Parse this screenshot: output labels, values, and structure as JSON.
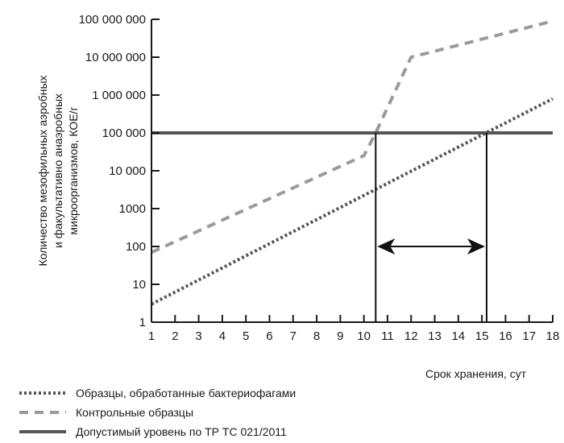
{
  "chart_data": {
    "type": "line",
    "xlabel": "Срок хранения, сут",
    "ylabel_lines": [
      "Количество мезофильных аэробных",
      "и факультативно анаэробных",
      "микроорганизмов, КОЕ/г"
    ],
    "x_ticks": [
      "1",
      "2",
      "3",
      "4",
      "5",
      "6",
      "7",
      "8",
      "9",
      "10",
      "11",
      "12",
      "13",
      "14",
      "15",
      "16",
      "17",
      "18"
    ],
    "y_ticks": [
      {
        "value": 1,
        "label": "1"
      },
      {
        "value": 10,
        "label": "10"
      },
      {
        "value": 100,
        "label": "100"
      },
      {
        "value": 1000,
        "label": "1000"
      },
      {
        "value": 10000,
        "label": "10 000"
      },
      {
        "value": 100000,
        "label": "100 000"
      },
      {
        "value": 1000000,
        "label": "1 000 000"
      },
      {
        "value": 10000000,
        "label": "10 000 000"
      },
      {
        "value": 100000000,
        "label": "100 000 000"
      }
    ],
    "xlim": [
      1,
      18
    ],
    "y_scale": "log",
    "ylim": [
      1,
      100000000
    ],
    "series": [
      {
        "name": "Образцы, обработанные бактериофагами",
        "style": "dotted",
        "color": "#555555",
        "x": [
          1,
          18
        ],
        "y": [
          3,
          800000
        ]
      },
      {
        "name": "Контрольные образцы",
        "style": "dashed",
        "color": "#9a9a9a",
        "x": [
          1,
          10,
          10.5,
          12,
          18
        ],
        "y": [
          70,
          25000,
          100000,
          10000000,
          90000000
        ]
      },
      {
        "name": "Допустимый уровень по ТР ТС 021/2011",
        "style": "solid",
        "color": "#555555",
        "x": [
          1,
          18
        ],
        "y": [
          100000,
          100000
        ]
      }
    ],
    "annotations": {
      "verticals_x": [
        10.5,
        15.2
      ],
      "arrow": {
        "from_x": 10.5,
        "to_x": 15.2,
        "y": 100
      }
    }
  }
}
